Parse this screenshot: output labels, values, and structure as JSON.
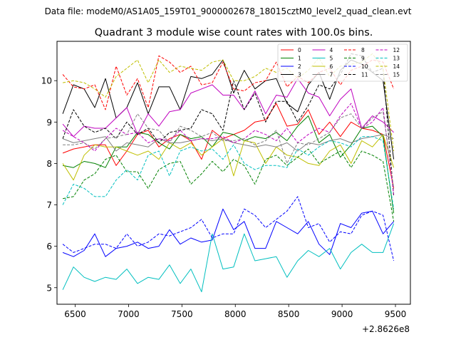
{
  "chart_data": {
    "type": "line",
    "suptitle": "Data file: modeM0/AS1A05_159T01_9000002678_18015cztM0_level2_quad_clean.evt",
    "title": "Quadrant 3 module wise count rates with 100.0s bins.",
    "xlabel": "",
    "ylabel": "",
    "x_offset_label": "+2.8626e8",
    "xlim": [
      6330,
      9640
    ],
    "ylim": [
      4.6,
      10.95
    ],
    "xticks": [
      6500,
      7000,
      7500,
      8000,
      8500,
      9000,
      9500
    ],
    "yticks": [
      5,
      6,
      7,
      8,
      9,
      10
    ],
    "x": [
      6384,
      6484,
      6584,
      6684,
      6784,
      6884,
      6984,
      7084,
      7184,
      7284,
      7384,
      7484,
      7584,
      7684,
      7784,
      7884,
      7984,
      8084,
      8184,
      8284,
      8384,
      8484,
      8584,
      8684,
      8784,
      8884,
      8984,
      9084,
      9184,
      9284,
      9384,
      9484
    ],
    "legend": {
      "location": "top-right",
      "columns": 4
    },
    "series": [
      {
        "name": "0",
        "color": "#ff0000",
        "dash": "solid",
        "values": [
          8.25,
          8.35,
          8.4,
          8.45,
          8.45,
          7.95,
          8.3,
          8.7,
          8.8,
          8.4,
          8.6,
          8.7,
          8.55,
          8.1,
          8.8,
          8.6,
          8.7,
          8.8,
          9.0,
          9.05,
          9.45,
          8.9,
          8.95,
          9.3,
          8.7,
          9.0,
          8.65,
          9.0,
          8.85,
          8.8,
          8.7,
          7.4
        ]
      },
      {
        "name": "1",
        "color": "#008000",
        "dash": "solid",
        "values": [
          7.95,
          7.9,
          8.05,
          8.0,
          7.9,
          8.4,
          8.4,
          8.75,
          8.7,
          8.5,
          8.35,
          8.7,
          8.6,
          8.65,
          8.4,
          8.75,
          8.7,
          8.55,
          8.65,
          8.6,
          8.75,
          8.55,
          8.9,
          9.15,
          8.5,
          8.7,
          8.15,
          8.45,
          8.85,
          8.9,
          8.65,
          6.8
        ]
      },
      {
        "name": "2",
        "color": "#0000ff",
        "dash": "solid",
        "values": [
          5.85,
          5.75,
          5.9,
          6.3,
          5.75,
          5.95,
          6.0,
          6.1,
          5.95,
          6.0,
          6.4,
          6.05,
          6.2,
          6.1,
          6.15,
          6.9,
          6.4,
          6.6,
          5.95,
          5.95,
          6.6,
          6.45,
          6.3,
          6.6,
          6.05,
          5.8,
          6.55,
          6.45,
          6.8,
          6.85,
          6.3,
          6.6
        ]
      },
      {
        "name": "3",
        "color": "#000000",
        "dash": "solid",
        "values": [
          9.2,
          9.9,
          9.8,
          9.35,
          10.05,
          9.1,
          9.35,
          9.95,
          9.2,
          9.85,
          9.85,
          9.3,
          10.1,
          10.05,
          10.15,
          10.5,
          9.7,
          10.25,
          9.8,
          10.0,
          10.05,
          9.45,
          9.25,
          9.9,
          10.2,
          9.55,
          10.25,
          10.5,
          10.4,
          10.2,
          10.0,
          8.1
        ]
      },
      {
        "name": "4",
        "color": "#bf00bf",
        "dash": "solid",
        "values": [
          8.95,
          8.65,
          8.9,
          8.85,
          8.85,
          9.1,
          9.35,
          8.7,
          9.2,
          8.9,
          9.25,
          9.3,
          9.7,
          9.8,
          9.9,
          9.65,
          9.65,
          9.3,
          9.75,
          9.2,
          9.65,
          9.6,
          10.05,
          9.7,
          9.6,
          9.15,
          9.55,
          9.8,
          8.85,
          9.15,
          9.0,
          8.75
        ]
      },
      {
        "name": "5",
        "color": "#00bfbf",
        "dash": "solid",
        "values": [
          4.95,
          5.5,
          5.25,
          5.15,
          5.25,
          5.2,
          5.45,
          5.1,
          5.25,
          5.2,
          5.55,
          5.1,
          5.45,
          4.9,
          6.3,
          5.45,
          5.5,
          6.3,
          5.65,
          5.7,
          5.75,
          5.25,
          5.65,
          5.9,
          5.75,
          5.95,
          5.45,
          5.85,
          6.05,
          5.85,
          5.85,
          6.55
        ]
      },
      {
        "name": "6",
        "color": "#bfbf00",
        "dash": "solid",
        "values": [
          8.0,
          7.6,
          8.2,
          8.45,
          8.4,
          8.4,
          8.3,
          8.2,
          8.3,
          8.1,
          8.5,
          8.35,
          8.5,
          8.2,
          8.4,
          8.6,
          7.7,
          8.55,
          8.5,
          8.0,
          8.4,
          8.2,
          8.15,
          8.0,
          7.95,
          8.3,
          8.45,
          8.0,
          8.55,
          8.4,
          8.7,
          7.9
        ]
      },
      {
        "name": "7",
        "color": "#808080",
        "dash": "solid",
        "values": [
          8.6,
          8.5,
          8.55,
          8.6,
          8.65,
          8.3,
          8.5,
          8.45,
          8.4,
          8.6,
          8.5,
          8.5,
          8.55,
          8.6,
          8.55,
          8.6,
          8.5,
          8.45,
          8.4,
          8.45,
          8.4,
          8.5,
          8.3,
          8.5,
          8.45,
          8.55,
          8.6,
          8.5,
          8.6,
          8.65,
          8.7,
          8.6
        ]
      },
      {
        "name": "8",
        "color": "#ff0000",
        "dash": "dashed",
        "values": [
          10.15,
          9.85,
          9.8,
          9.9,
          9.3,
          10.35,
          9.65,
          10.05,
          9.35,
          10.6,
          10.45,
          10.2,
          10.35,
          9.9,
          9.95,
          10.45,
          9.8,
          9.75,
          9.95,
          10.0,
          10.45,
          9.85,
          10.1,
          9.95,
          10.2,
          10.3,
          9.9,
          10.25,
          10.35,
          10.5,
          10.45,
          9.8
        ]
      },
      {
        "name": "9",
        "color": "#008000",
        "dash": "dashed",
        "values": [
          7.15,
          7.2,
          7.6,
          7.75,
          8.1,
          8.2,
          7.8,
          7.8,
          7.4,
          7.85,
          8.0,
          8.05,
          7.5,
          7.75,
          8.05,
          7.8,
          8.1,
          7.95,
          7.5,
          8.1,
          8.2,
          7.95,
          8.15,
          8.35,
          8.0,
          8.15,
          8.3,
          7.9,
          8.3,
          8.2,
          8.05,
          6.6
        ]
      },
      {
        "name": "10",
        "color": "#0000ff",
        "dash": "dashed",
        "values": [
          6.05,
          5.85,
          5.95,
          6.05,
          6.05,
          5.95,
          6.3,
          6.0,
          6.1,
          6.3,
          6.25,
          6.35,
          6.45,
          6.65,
          6.2,
          6.3,
          6.3,
          6.9,
          6.75,
          6.45,
          6.65,
          6.85,
          7.2,
          6.45,
          6.55,
          6.1,
          6.35,
          6.3,
          6.75,
          6.85,
          6.75,
          5.65
        ]
      },
      {
        "name": "11",
        "color": "#000000",
        "dash": "dashed",
        "values": [
          8.6,
          9.3,
          8.9,
          8.75,
          8.85,
          8.6,
          9.0,
          8.7,
          8.85,
          8.5,
          8.75,
          8.8,
          8.85,
          9.3,
          9.2,
          8.8,
          10.0,
          9.3,
          9.7,
          9.0,
          9.5,
          9.5,
          9.0,
          9.4,
          9.9,
          9.8,
          10.15,
          10.65,
          10.6,
          10.2,
          10.3,
          7.2
        ]
      },
      {
        "name": "12",
        "color": "#bf00bf",
        "dash": "dashed",
        "values": [
          8.8,
          8.65,
          8.5,
          8.3,
          8.6,
          8.85,
          8.7,
          8.75,
          8.5,
          8.6,
          8.55,
          8.8,
          8.55,
          8.6,
          8.6,
          8.65,
          8.5,
          8.6,
          8.8,
          8.7,
          8.55,
          8.85,
          8.5,
          8.7,
          8.85,
          8.75,
          9.15,
          9.45,
          8.85,
          9.0,
          9.35,
          7.25
        ]
      },
      {
        "name": "13",
        "color": "#00bfbf",
        "dash": "dashed",
        "values": [
          7.0,
          7.5,
          7.4,
          7.2,
          7.2,
          7.6,
          7.85,
          7.6,
          8.2,
          8.3,
          7.7,
          8.3,
          8.4,
          8.3,
          8.35,
          8.1,
          8.45,
          8.0,
          7.85,
          7.95,
          7.95,
          7.9,
          8.35,
          8.2,
          8.4,
          8.55,
          8.5,
          8.4,
          8.65,
          8.65,
          8.55,
          6.9
        ]
      },
      {
        "name": "14",
        "color": "#bfbf00",
        "dash": "dashed",
        "values": [
          9.95,
          10.0,
          9.95,
          9.8,
          9.6,
          10.1,
          10.3,
          10.5,
          9.95,
          10.5,
          10.2,
          10.35,
          10.3,
          10.25,
          10.45,
          10.5,
          10.0,
          10.0,
          10.1,
          10.3,
          10.2,
          10.3,
          10.05,
          10.25,
          10.55,
          10.1,
          10.35,
          10.4,
          10.45,
          10.65,
          10.3,
          8.3
        ]
      },
      {
        "name": "15",
        "color": "#808080",
        "dash": "dashed",
        "values": [
          8.45,
          8.45,
          8.5,
          8.35,
          8.6,
          8.65,
          8.7,
          9.2,
          8.85,
          8.8,
          8.5,
          8.9,
          8.8,
          8.65,
          8.75,
          8.55,
          8.55,
          8.6,
          8.45,
          8.55,
          8.8,
          8.0,
          8.5,
          8.45,
          8.6,
          8.75,
          9.1,
          9.2,
          8.85,
          9.1,
          9.25,
          7.4
        ]
      }
    ]
  }
}
